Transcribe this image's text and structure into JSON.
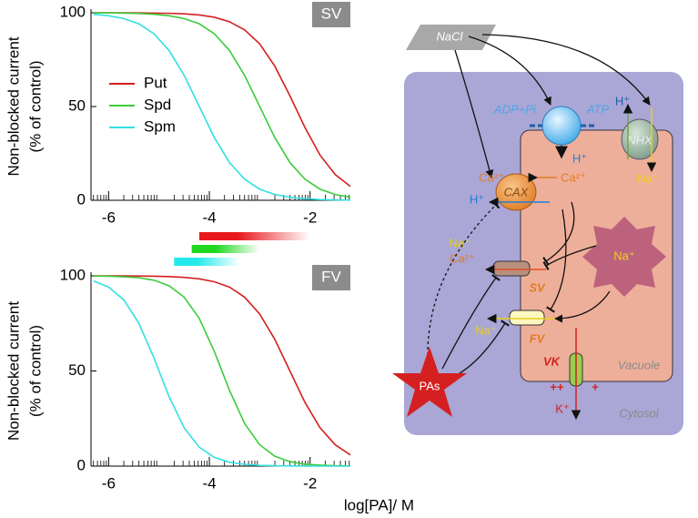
{
  "chart_data": [
    {
      "type": "line",
      "ylabel": [
        "Non-blocked current",
        "(% of control)"
      ],
      "annotation": "SV",
      "x": [
        -6.3,
        -6.0,
        -5.7,
        -5.4,
        -5.1,
        -4.8,
        -4.5,
        -4.2,
        -3.9,
        -3.6,
        -3.3,
        -3.0,
        -2.7,
        -2.4,
        -2.1,
        -1.8,
        -1.5,
        -1.2
      ],
      "series": [
        {
          "name": "Put",
          "color": "#d42020",
          "values": [
            100,
            100,
            100,
            99.9,
            99.8,
            99.7,
            99.4,
            98.8,
            97.6,
            95.2,
            90.9,
            83.4,
            71.5,
            55.7,
            38.7,
            24.0,
            13.7,
            7.4
          ]
        },
        {
          "name": "Spd",
          "color": "#3ccc3c",
          "values": [
            99.9,
            99.9,
            99.8,
            99.6,
            99.2,
            98.4,
            96.9,
            94.1,
            88.8,
            79.9,
            66.6,
            50,
            33.4,
            20.1,
            11.2,
            5.9,
            3.1,
            1.6
          ]
        },
        {
          "name": "Spm",
          "color": "#33e0e0",
          "values": [
            99.2,
            98.4,
            96.9,
            94.1,
            88.8,
            79.9,
            66.6,
            50,
            33.4,
            20.1,
            11.2,
            5.9,
            3.1,
            1.6,
            0.8,
            0.4,
            0.2,
            0.1
          ]
        }
      ],
      "ranges": [
        {
          "color": "#e8191c",
          "from": -4.2,
          "to": -2.0
        },
        {
          "color": "#1fd81f",
          "from": -4.35,
          "to": -3.0
        },
        {
          "color": "#22eaea",
          "from": -4.7,
          "to": -3.4
        }
      ],
      "xlim": [
        -6.35,
        -1.2
      ],
      "xticks": [
        -6,
        -4,
        -2
      ],
      "ylim": [
        0,
        100
      ],
      "yticks": [
        0,
        50,
        100
      ],
      "legend": "upper-left",
      "log_scale": true
    },
    {
      "type": "line",
      "ylabel": [
        "Non-blocked current",
        "(% of control)"
      ],
      "xlabel": "log[PA]/ M",
      "annotation": "FV",
      "x": [
        -6.3,
        -6.0,
        -5.7,
        -5.4,
        -5.1,
        -4.8,
        -4.5,
        -4.2,
        -3.9,
        -3.6,
        -3.3,
        -3.0,
        -2.7,
        -2.4,
        -2.1,
        -1.8,
        -1.5,
        -1.2
      ],
      "series": [
        {
          "color": "#d42020",
          "values": [
            100,
            100,
            100,
            99.9,
            99.8,
            99.6,
            99.2,
            98.4,
            96.9,
            94.1,
            88.8,
            79.9,
            66.6,
            50,
            33.4,
            20.1,
            11.2,
            5.9
          ]
        },
        {
          "color": "#3ccc3c",
          "values": [
            99.9,
            99.8,
            99.5,
            99.0,
            97.7,
            94.8,
            88.8,
            77.6,
            60.2,
            39.8,
            22.4,
            11.2,
            5.2,
            2.3,
            1.0,
            0.5,
            0.2,
            0.1
          ]
        },
        {
          "color": "#33e0e0",
          "values": [
            97.3,
            94.1,
            87.4,
            75.1,
            56.9,
            36.5,
            20.1,
            9.9,
            4.6,
            2.0,
            0.9,
            0.4,
            0.2,
            0.1,
            0.0,
            0.0,
            0.0,
            0.0
          ]
        }
      ],
      "xlim": [
        -6.35,
        -1.2
      ],
      "xticks": [
        -6,
        -4,
        -2
      ],
      "ylim": [
        0,
        100
      ],
      "yticks": [
        0,
        50,
        100
      ],
      "log_scale": true
    }
  ],
  "diagram": {
    "nacl": "NaCl",
    "adp": "ADP+Pi",
    "atp": "ATP",
    "pump_h": "H⁺",
    "pump_ca": "Ca²⁺",
    "cax": "CAX",
    "cax_h": "H⁺",
    "cax_ca": "Ca²⁺",
    "nhx": "NHX",
    "nhx_h": "H⁺",
    "nhx_na": "Na⁺",
    "star_na": "Na⁺",
    "sv_na": "Na⁺",
    "sv_ca": "Ca²⁺",
    "sv": "SV",
    "fv_na": "Na⁺",
    "fv": "FV",
    "vk": "VK",
    "vk_plus": "++",
    "vk_plus2": "+",
    "k": "K⁺",
    "vacuole": "Vacuole",
    "cytosol": "Cytosol",
    "pas": "PAs"
  }
}
